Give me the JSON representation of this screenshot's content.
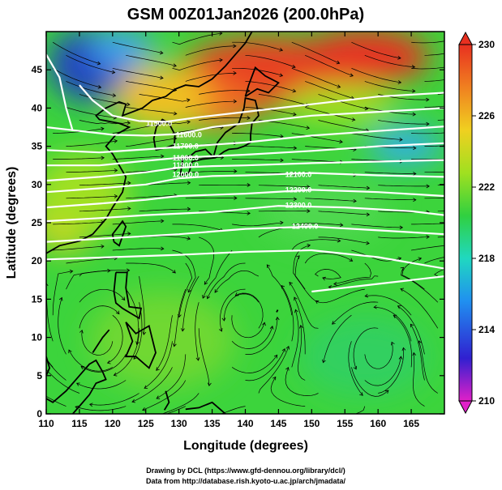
{
  "chart_data": {
    "type": "heatmap",
    "title": "GSM 00Z01Jan2026 (200.0hPa)",
    "xlabel": "Longitude (degrees)",
    "ylabel": "Latitude  (degrees)",
    "xlim": [
      110,
      170
    ],
    "ylim": [
      0,
      50
    ],
    "x_ticks": [
      "110",
      "115",
      "120",
      "125",
      "130",
      "135",
      "140",
      "145",
      "150",
      "155",
      "160",
      "165"
    ],
    "y_ticks": [
      "0",
      "5",
      "10",
      "15",
      "20",
      "25",
      "30",
      "35",
      "40",
      "45"
    ],
    "colorbar": {
      "min": 210,
      "max": 230,
      "ticks": [
        "210",
        "214",
        "218",
        "222",
        "226",
        "230"
      ],
      "colors": [
        "#e020c8",
        "#2020d0",
        "#2090f0",
        "#20d8c0",
        "#30d040",
        "#a0e020",
        "#f0d020",
        "#f08020",
        "#e83020"
      ]
    },
    "contour_labels": [
      {
        "text": "11500.0",
        "lon": 127,
        "lat": 38
      },
      {
        "text": "11600.0",
        "lon": 131.5,
        "lat": 36.5
      },
      {
        "text": "11700.0",
        "lon": 131,
        "lat": 35
      },
      {
        "text": "11800.0",
        "lon": 131,
        "lat": 33.5
      },
      {
        "text": "11900.0",
        "lon": 131,
        "lat": 32.5
      },
      {
        "text": "12000.0",
        "lon": 131,
        "lat": 31.3
      },
      {
        "text": "12100.0",
        "lon": 148,
        "lat": 31.3
      },
      {
        "text": "12200.0",
        "lon": 148,
        "lat": 29.3
      },
      {
        "text": "12300.0",
        "lon": 148,
        "lat": 27.3
      },
      {
        "text": "12400.0",
        "lon": 149,
        "lat": 24.5
      }
    ],
    "grid": false,
    "credits": [
      "Drawing by DCL (https://www.gfd-dennou.org/library/dcl/)",
      "Data from http://database.rish.kyoto-u.ac.jp/arch/jmadata/"
    ]
  }
}
